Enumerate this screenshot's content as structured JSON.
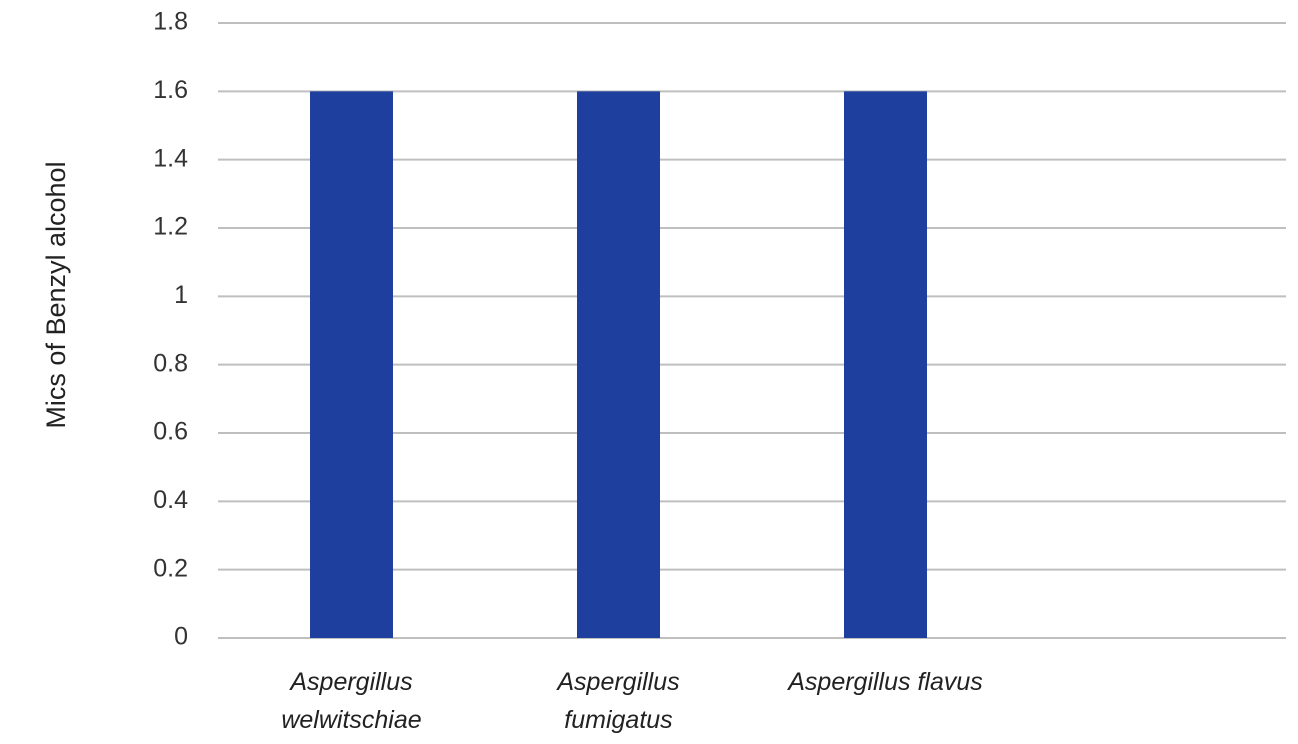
{
  "chart_data": {
    "type": "bar",
    "categories": [
      "Aspergillus welwitschiae",
      "Aspergillus fumigatus",
      "Aspergillus flavus"
    ],
    "category_lines": [
      [
        "Aspergillus",
        "welwitschiae"
      ],
      [
        "Aspergillus",
        "fumigatus"
      ],
      [
        "Aspergillus flavus"
      ]
    ],
    "values": [
      1.6,
      1.6,
      1.6
    ],
    "ylabel": "Mics of Benzyl alcohol",
    "ylim": [
      0,
      1.8
    ],
    "yticks": [
      "0",
      "0.2",
      "0.4",
      "0.6",
      "0.8",
      "1",
      "1.2",
      "1.4",
      "1.6",
      "1.8"
    ],
    "grid": true,
    "bar_color": "#1f3f9e",
    "category_slots": 4
  }
}
